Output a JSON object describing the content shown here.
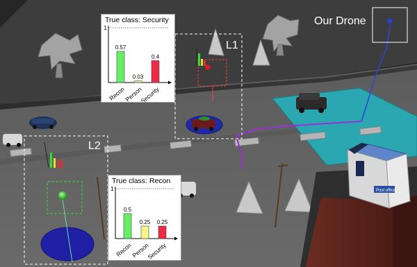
{
  "labels": {
    "our_drone": "Our Drone",
    "l1": "L1",
    "l2": "L2"
  },
  "panels": [
    {
      "title": "True class: Security",
      "ymax_label": "1",
      "chart_data": {
        "type": "bar",
        "title": "True class: Security",
        "categories": [
          "Recon",
          "Person",
          "Security"
        ],
        "values": [
          0.57,
          0.03,
          0.4
        ],
        "value_labels": [
          "0.57",
          "0.03",
          "0.4"
        ],
        "ylim": [
          0,
          1
        ],
        "colors": [
          "#66ee66",
          "#f5f58a",
          "#ee2b45"
        ]
      }
    },
    {
      "title": "True class: Recon",
      "ymax_label": "1",
      "chart_data": {
        "type": "bar",
        "title": "True class: Recon",
        "categories": [
          "Recon",
          "Person",
          "Security"
        ],
        "values": [
          0.5,
          0.25,
          0.25
        ],
        "value_labels": [
          "0.5",
          "0.25",
          "0.25"
        ],
        "ylim": [
          0,
          1
        ],
        "colors": [
          "#66ee66",
          "#f5f58a",
          "#ee2b45"
        ]
      }
    }
  ]
}
